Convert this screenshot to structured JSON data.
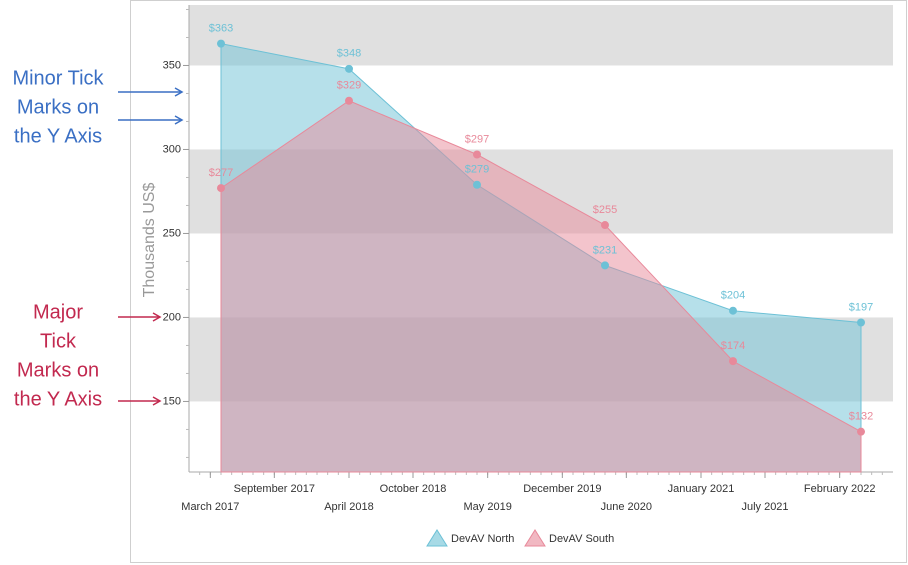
{
  "chart_data": {
    "type": "area",
    "y_axis_label": "Thousands US$",
    "x": [
      "2017-04",
      "2018-04",
      "2019-04",
      "2020-04",
      "2021-04",
      "2022-04"
    ],
    "xlim": [
      "2017-01",
      "2022-07"
    ],
    "xticks": [
      {
        "value": "2017-03",
        "label": "March 2017"
      },
      {
        "value": "2017-09",
        "label": "September 2017"
      },
      {
        "value": "2018-04",
        "label": "April 2018"
      },
      {
        "value": "2018-10",
        "label": "October 2018"
      },
      {
        "value": "2019-05",
        "label": "May 2019"
      },
      {
        "value": "2019-12",
        "label": "December 2019"
      },
      {
        "value": "2020-06",
        "label": "June 2020"
      },
      {
        "value": "2021-01",
        "label": "January 2021"
      },
      {
        "value": "2021-07",
        "label": "July 2021"
      },
      {
        "value": "2022-02",
        "label": "February 2022"
      }
    ],
    "ylim": [
      108,
      386
    ],
    "yticks": [
      150,
      200,
      250,
      300,
      350
    ],
    "y_minor_ticks_per_interval": 2,
    "interlaced": true,
    "series": [
      {
        "name": "DevAV North",
        "color": "#6dc1d6",
        "values": [
          363,
          348,
          279,
          231,
          204,
          197
        ],
        "value_labels": [
          "$363",
          "$348",
          "$279",
          "$231",
          "$204",
          "$197"
        ]
      },
      {
        "name": "DevAV South",
        "color": "#e8899a",
        "values": [
          277,
          329,
          297,
          255,
          174,
          132
        ],
        "value_labels": [
          "$277",
          "$329",
          "$297",
          "$255",
          "$174",
          "$132"
        ]
      }
    ],
    "legend": "bottom"
  },
  "annotations": [
    {
      "lines": [
        "Minor Tick",
        "Marks on",
        "the Y Axis"
      ],
      "color": "#3a6fc4"
    },
    {
      "lines": [
        "Major",
        "Tick",
        "Marks on",
        "the Y Axis"
      ],
      "color": "#c2294f"
    }
  ]
}
